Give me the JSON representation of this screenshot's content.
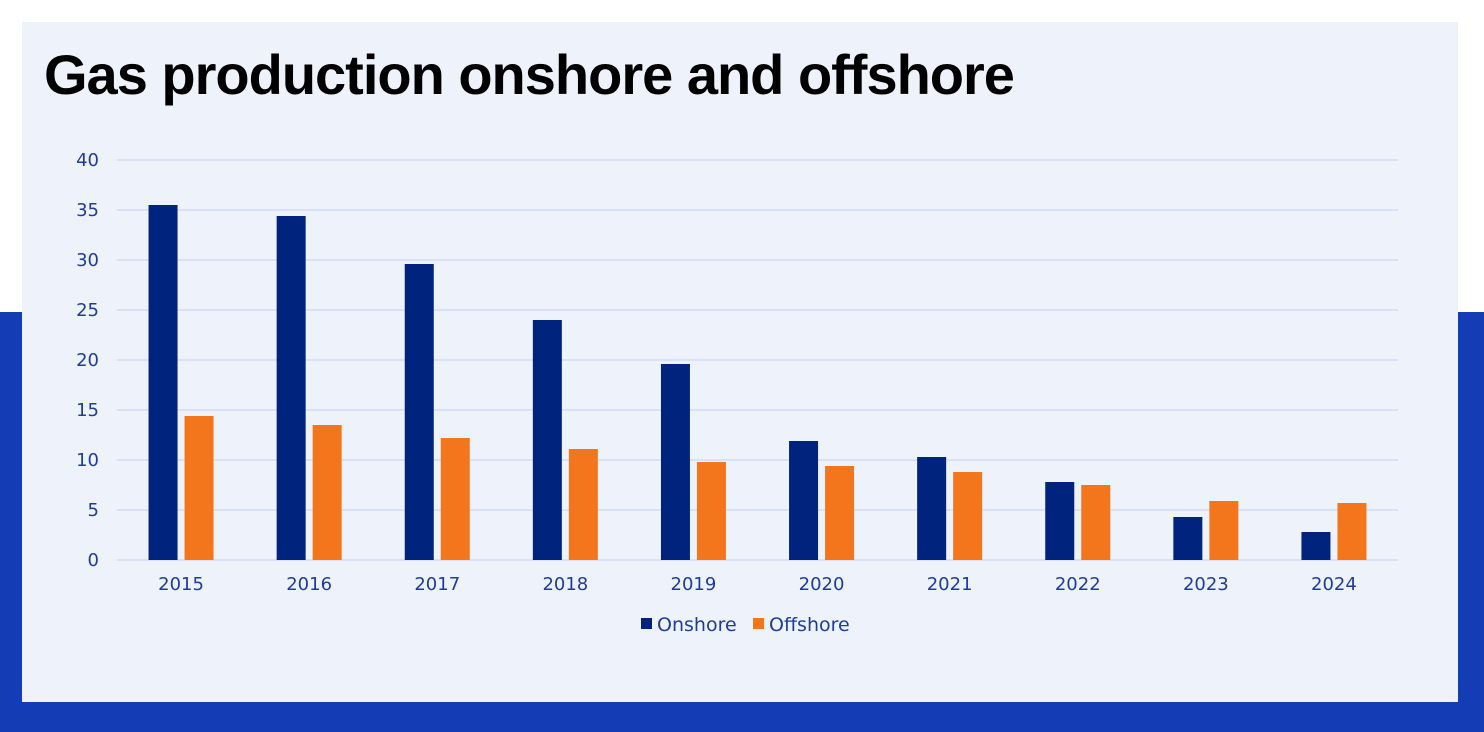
{
  "title": "Gas production onshore and offshore",
  "colors": {
    "background_band": "#143cb4",
    "card": "#eef2fa",
    "onshore": "#00237d",
    "offshore": "#f4761c",
    "gridline": "#c5cff0",
    "tick_text": "#1e3ca0"
  },
  "chart_data": {
    "type": "bar",
    "categories": [
      "2015",
      "2016",
      "2017",
      "2018",
      "2019",
      "2020",
      "2021",
      "2022",
      "2023",
      "2024"
    ],
    "series": [
      {
        "name": "Onshore",
        "values": [
          35.5,
          34.4,
          29.6,
          24.0,
          19.6,
          11.9,
          10.3,
          7.8,
          4.3,
          2.8
        ]
      },
      {
        "name": "Offshore",
        "values": [
          14.4,
          13.5,
          12.2,
          11.1,
          9.8,
          9.4,
          8.8,
          7.5,
          5.9,
          5.7
        ]
      }
    ],
    "ylim": [
      0,
      40
    ],
    "yticks": [
      "0",
      "5",
      "10",
      "15",
      "20",
      "25",
      "30",
      "35",
      "40"
    ],
    "grid": true,
    "legend_position": "bottom-center",
    "xlabel": "",
    "ylabel": ""
  }
}
